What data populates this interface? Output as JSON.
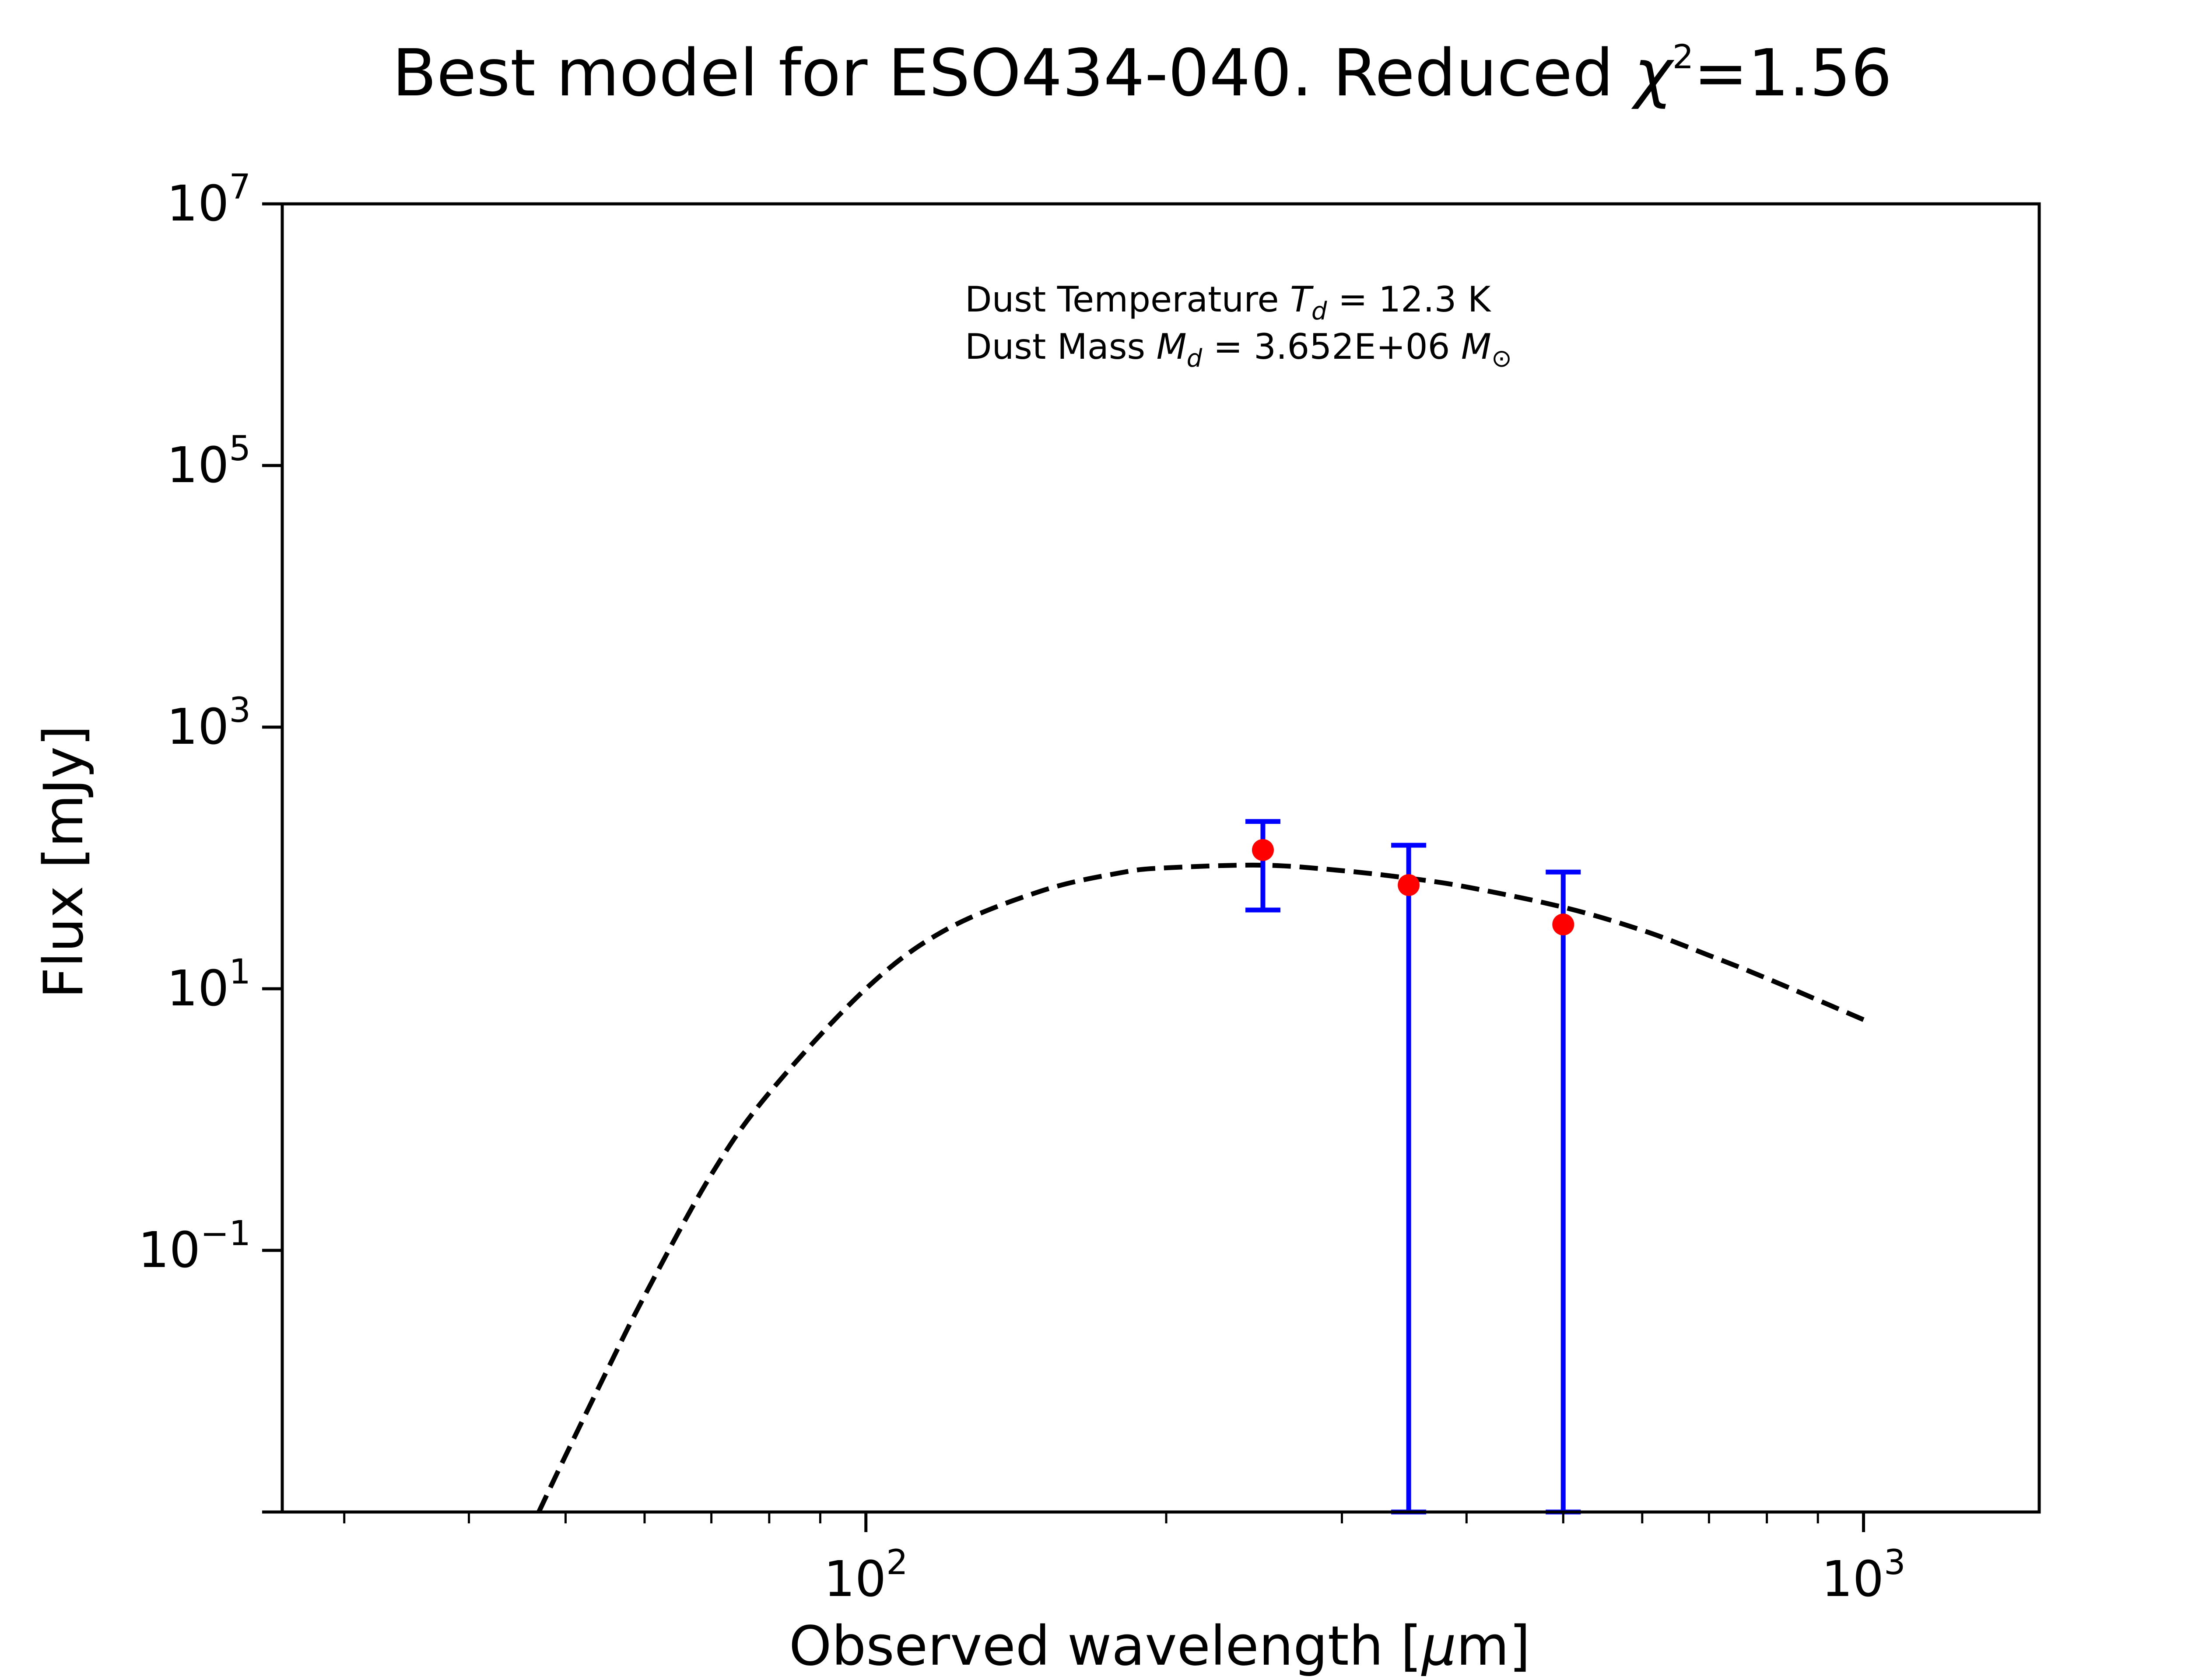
{
  "colors": {
    "model": "#000000",
    "errorbar": "#0000ff",
    "points": "#ff0000",
    "axes": "#000000",
    "background": "#ffffff"
  },
  "chart_data": {
    "type": "scatter",
    "title": {
      "prefix": "Best model for ESO434-040. Reduced ",
      "symbol": "χ",
      "exponent": "2",
      "suffix": "=1.56"
    },
    "xlabel": {
      "prefix": "Observed wavelength [",
      "mu": "μ",
      "suffix": "m]"
    },
    "ylabel": "Flux [mJy]",
    "xscale": "log",
    "yscale": "log",
    "xlim": [
      26,
      1500
    ],
    "ylim": [
      0.001,
      10000000
    ],
    "x_ticks": [
      {
        "value": 100,
        "base": "10",
        "exp": "2"
      },
      {
        "value": 1000,
        "base": "10",
        "exp": "3"
      }
    ],
    "y_ticks": [
      {
        "value": 10000000,
        "base": "10",
        "exp": "7"
      },
      {
        "value": 100000,
        "base": "10",
        "exp": "5"
      },
      {
        "value": 1000,
        "base": "10",
        "exp": "3"
      },
      {
        "value": 10,
        "base": "10",
        "exp": "1"
      },
      {
        "value": 0.1,
        "base": "10",
        "exp": "−1"
      }
    ],
    "grid": false,
    "annotation": {
      "line1": {
        "prefix": "Dust Temperature ",
        "sym": "T",
        "sub": "d",
        "suffix": " = 12.3 K"
      },
      "line2": {
        "prefix": "Dust Mass ",
        "sym": "M",
        "sub": "d",
        "mid": " = 3.652E+06 ",
        "unit": "M",
        "unit_sub": "⊙"
      }
    },
    "model_curve": {
      "style": "dashed",
      "x": [
        47,
        50,
        55,
        60,
        70,
        80,
        100,
        120,
        150,
        180,
        200,
        250,
        300,
        350,
        400,
        500,
        600,
        700,
        800,
        1000
      ],
      "y": [
        0.001,
        0.0027,
        0.012,
        0.045,
        0.38,
        1.6,
        10,
        28,
        56,
        77,
        84,
        88,
        80,
        70,
        60,
        42,
        28,
        18,
        12,
        5.8
      ]
    },
    "series": [
      {
        "x": [
          250,
          350,
          500
        ],
        "y": [
          115,
          62,
          31
        ],
        "err_low": [
          40,
          0.001,
          0.001
        ],
        "err_high": [
          190,
          125,
          78
        ]
      }
    ]
  }
}
